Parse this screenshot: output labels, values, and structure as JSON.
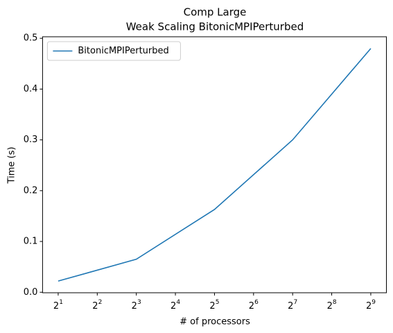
{
  "chart_data": {
    "type": "line",
    "title": "Comp Large",
    "subtitle": "Weak Scaling BitonicMPIPerturbed",
    "xlabel": "# of processors",
    "ylabel": "Time (s)",
    "x": [
      2,
      8,
      32,
      128,
      512
    ],
    "series": [
      {
        "name": "BitonicMPIPerturbed",
        "color": "#1f77b4",
        "values": [
          0.022,
          0.065,
          0.163,
          0.3,
          0.48
        ]
      }
    ],
    "xscale": "log2",
    "xlim": [
      1.516,
      675.6
    ],
    "xticks": [
      {
        "value": 2,
        "label": "2^1"
      },
      {
        "value": 4,
        "label": "2^2"
      },
      {
        "value": 8,
        "label": "2^3"
      },
      {
        "value": 16,
        "label": "2^4"
      },
      {
        "value": 32,
        "label": "2^5"
      },
      {
        "value": 64,
        "label": "2^6"
      },
      {
        "value": 128,
        "label": "2^7"
      },
      {
        "value": 256,
        "label": "2^8"
      },
      {
        "value": 512,
        "label": "2^9"
      }
    ],
    "ylim": [
      -0.001,
      0.503
    ],
    "yticks": [
      {
        "value": 0,
        "label": "0.0"
      },
      0.1,
      0.2,
      0.3,
      0.4,
      0.5
    ],
    "grid": false,
    "legend": "upper left"
  }
}
